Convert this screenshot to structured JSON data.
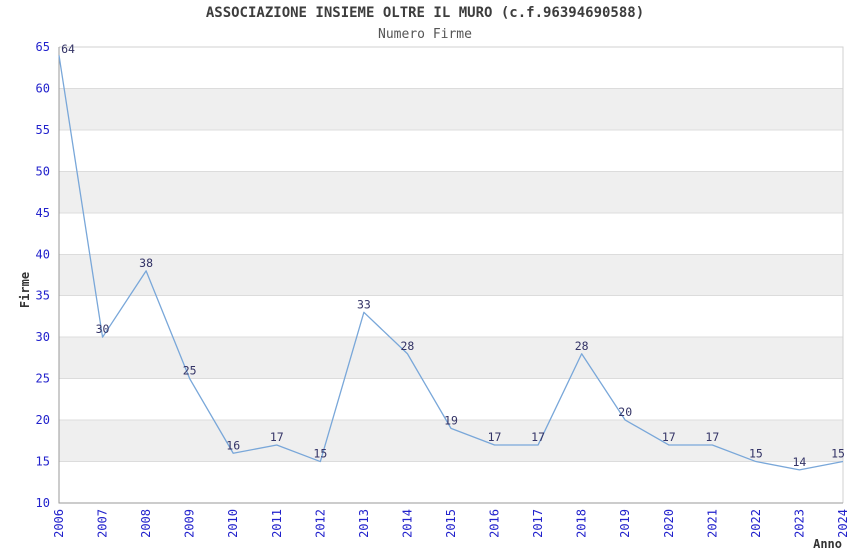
{
  "header": {
    "title": "ASSOCIAZIONE INSIEME OLTRE IL MURO (c.f.96394690588)",
    "subtitle": "Numero Firme"
  },
  "chart_data": {
    "type": "line",
    "title": "ASSOCIAZIONE INSIEME OLTRE IL MURO (c.f.96394690588)",
    "subtitle": "Numero Firme",
    "xlabel": "Anno",
    "ylabel": "Firme",
    "categories": [
      "2006",
      "2007",
      "2008",
      "2009",
      "2010",
      "2011",
      "2012",
      "2013",
      "2014",
      "2015",
      "2016",
      "2017",
      "2018",
      "2019",
      "2020",
      "2021",
      "2022",
      "2023",
      "2024"
    ],
    "series": [
      {
        "name": "Numero Firme",
        "values": [
          64,
          30,
          38,
          25,
          16,
          17,
          15,
          33,
          28,
          19,
          17,
          17,
          28,
          20,
          17,
          17,
          15,
          14,
          15
        ]
      }
    ],
    "data_labels": [
      64,
      30,
      38,
      25,
      16,
      17,
      15,
      33,
      28,
      19,
      17,
      17,
      28,
      20,
      17,
      17,
      15,
      14,
      15
    ],
    "ylim": [
      10,
      65
    ],
    "ytick_step": 5,
    "yticks": [
      10,
      15,
      20,
      25,
      30,
      35,
      40,
      45,
      50,
      55,
      60,
      65
    ],
    "grid": "horizontal-alternating-bands",
    "legend_position": "none",
    "colors": {
      "line": "#79a7d9",
      "tick_label": "#2222cc",
      "data_label": "#333366",
      "band_gray": "#efefef",
      "gridline": "#dcdcdc",
      "axis_dark": "#9a9a9a",
      "axis_light": "#d2d2d2",
      "title": "#3d3d3d",
      "subtitle": "#555555",
      "axis_title": "#333333",
      "background": "#ffffff"
    }
  }
}
